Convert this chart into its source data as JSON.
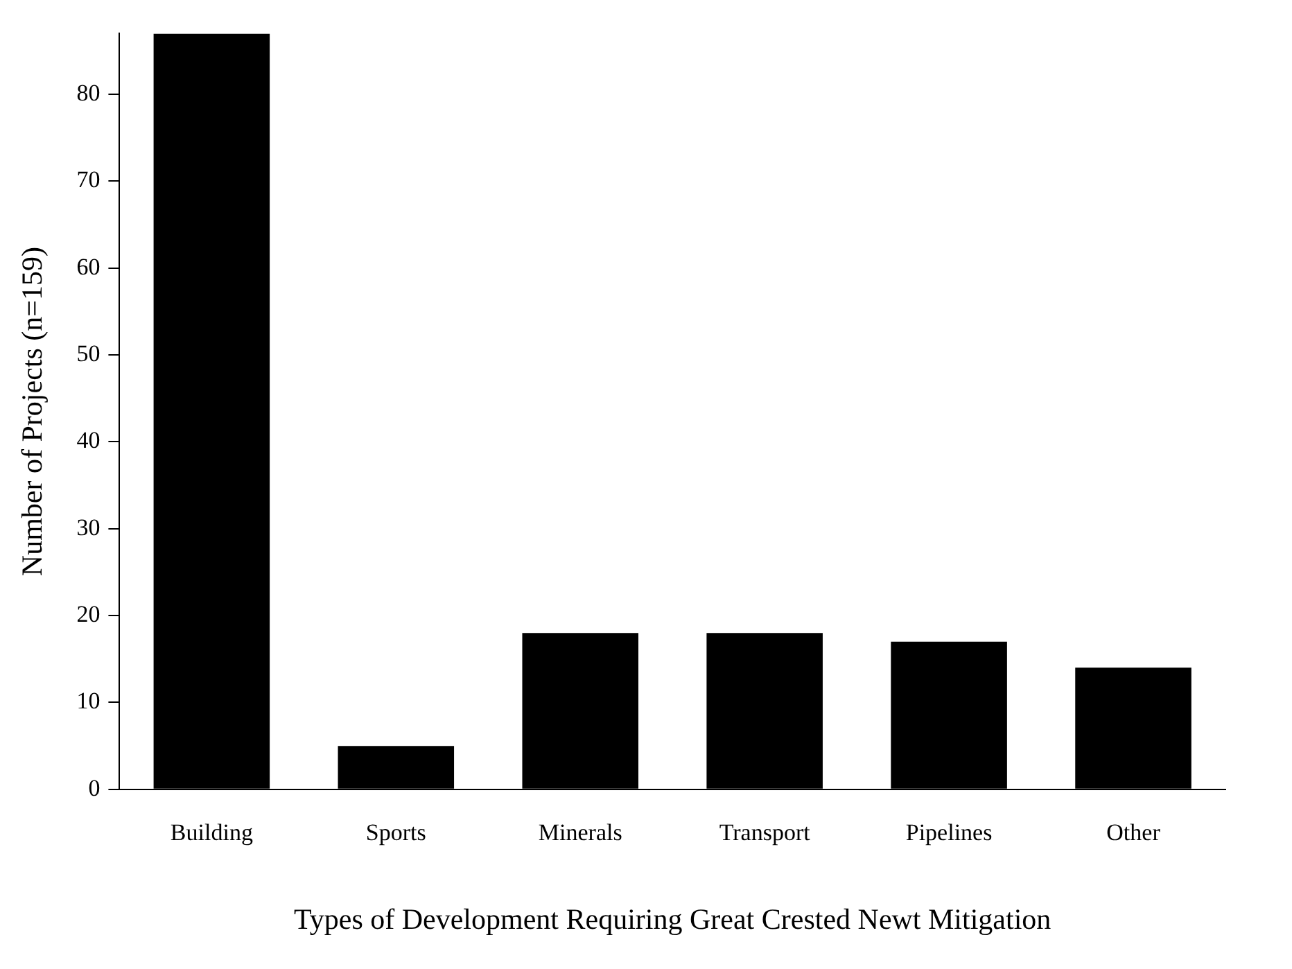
{
  "chart_data": {
    "type": "bar",
    "xlabel": "Types of Development Requiring Great Crested Newt Mitigation",
    "ylabel": "Number of Projects (n=159)",
    "categories": [
      "Building",
      "Sports",
      "Minerals",
      "Transport",
      "Pipelines",
      "Other"
    ],
    "values": [
      87,
      5,
      18,
      18,
      17,
      14
    ],
    "color": "#000000",
    "ylim": [
      0,
      87
    ],
    "yticks": [
      0,
      10,
      20,
      30,
      40,
      50,
      60,
      70,
      80
    ],
    "grid": false,
    "legend": false
  }
}
